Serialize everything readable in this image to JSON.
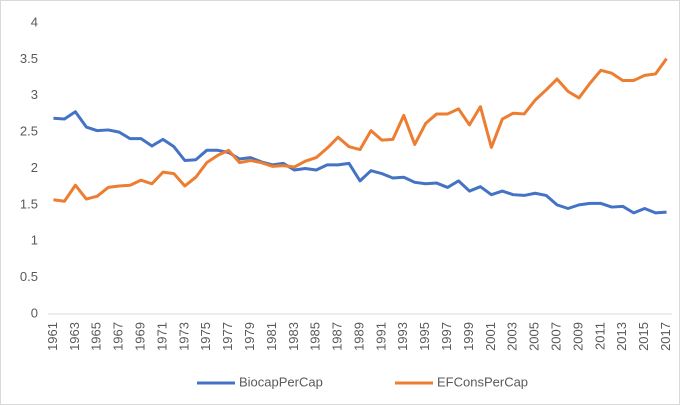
{
  "chart_data": {
    "type": "line",
    "categories": [
      "1961",
      null,
      "1963",
      null,
      "1965",
      null,
      "1967",
      null,
      "1969",
      null,
      "1971",
      null,
      "1973",
      null,
      "1975",
      null,
      "1977",
      null,
      "1979",
      null,
      "1981",
      null,
      "1983",
      null,
      "1985",
      null,
      "1987",
      null,
      "1989",
      null,
      "1991",
      null,
      "1993",
      null,
      "1995",
      null,
      "1997",
      null,
      "1999",
      null,
      "2001",
      null,
      "2003",
      null,
      "2005",
      null,
      "2007",
      null,
      "2009",
      null,
      "2011",
      null,
      "2013",
      null,
      "2015",
      null,
      "2017"
    ],
    "series": [
      {
        "name": "BiocapPerCap",
        "color": "#4472c4",
        "values": [
          2.69,
          2.68,
          2.78,
          2.57,
          2.52,
          2.53,
          2.5,
          2.41,
          2.41,
          2.31,
          2.4,
          2.3,
          2.11,
          2.12,
          2.25,
          2.25,
          2.22,
          2.13,
          2.15,
          2.09,
          2.05,
          2.07,
          1.98,
          2.0,
          1.98,
          2.05,
          2.05,
          2.07,
          1.83,
          1.97,
          1.93,
          1.87,
          1.88,
          1.81,
          1.79,
          1.8,
          1.74,
          1.83,
          1.69,
          1.75,
          1.64,
          1.69,
          1.64,
          1.63,
          1.66,
          1.63,
          1.5,
          1.45,
          1.5,
          1.52,
          1.52,
          1.47,
          1.48,
          1.39,
          1.45,
          1.39,
          1.4
        ]
      },
      {
        "name": "EFConsPerCap",
        "color": "#ed7d31",
        "values": [
          1.57,
          1.55,
          1.77,
          1.58,
          1.62,
          1.74,
          1.76,
          1.77,
          1.84,
          1.79,
          1.95,
          1.93,
          1.76,
          1.88,
          2.08,
          2.18,
          2.25,
          2.08,
          2.11,
          2.08,
          2.03,
          2.04,
          2.02,
          2.1,
          2.15,
          2.28,
          2.43,
          2.3,
          2.26,
          2.52,
          2.39,
          2.4,
          2.73,
          2.33,
          2.62,
          2.75,
          2.75,
          2.82,
          2.6,
          2.85,
          2.29,
          2.68,
          2.76,
          2.75,
          2.94,
          3.08,
          3.23,
          3.06,
          2.97,
          3.17,
          3.35,
          3.31,
          3.21,
          3.21,
          3.28,
          3.3,
          3.51
        ]
      }
    ],
    "ylim": [
      0,
      4
    ],
    "yticks": [
      0,
      0.5,
      1,
      1.5,
      2,
      2.5,
      3,
      3.5,
      4
    ],
    "grid": false,
    "legend": "bottom"
  }
}
